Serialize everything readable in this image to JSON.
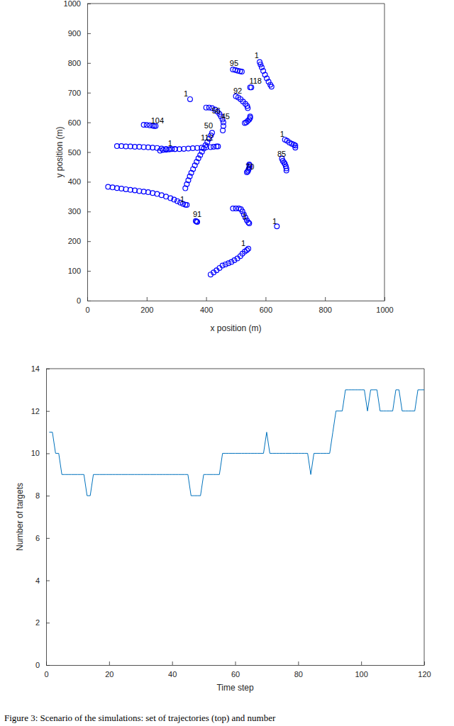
{
  "chart_data": [
    {
      "type": "scatter",
      "x_label": "x position (m)",
      "y_label": "y position (m)",
      "xlim": [
        0,
        1000
      ],
      "ylim": [
        0,
        1000
      ],
      "xticks": [
        0,
        200,
        400,
        600,
        800,
        1000
      ],
      "yticks": [
        0,
        100,
        200,
        300,
        400,
        500,
        600,
        700,
        800,
        900,
        1000
      ],
      "color": "#0000ff",
      "marker": "circle",
      "series": [
        {
          "x": [
            100,
            115,
            130,
            145,
            160,
            175,
            190,
            205,
            220,
            235,
            250,
            265,
            280,
            295,
            310,
            325,
            340,
            355,
            370,
            385,
            400,
            415,
            425,
            435,
            440
          ],
          "values": [
            520,
            520,
            519,
            519,
            518,
            518,
            517,
            516,
            515,
            514,
            512,
            511,
            510,
            510,
            510,
            511,
            512,
            513,
            514,
            515,
            516,
            517,
            518,
            519,
            519
          ]
        },
        {
          "x": [
            245,
            255,
            265,
            275,
            285,
            295
          ],
          "values": [
            505,
            507,
            508,
            509,
            510,
            510
          ]
        },
        {
          "x": [
            330,
            335,
            340,
            345,
            350,
            356,
            362,
            368,
            374,
            380,
            386,
            392,
            398,
            404,
            410,
            416,
            420
          ],
          "values": [
            378,
            392,
            405,
            418,
            430,
            443,
            455,
            467,
            479,
            490,
            501,
            512,
            523,
            534,
            545,
            556,
            565
          ]
        },
        {
          "x": [
            70,
            85,
            100,
            115,
            130,
            145,
            160,
            175,
            190,
            205,
            220,
            235,
            250,
            265,
            280,
            292,
            303,
            313,
            322,
            330,
            335
          ],
          "values": [
            383,
            381,
            379,
            377,
            375,
            373,
            371,
            369,
            367,
            365,
            362,
            359,
            355,
            350,
            345,
            340,
            335,
            330,
            326,
            323,
            322
          ]
        },
        {
          "x": [
            190,
            200,
            210,
            220,
            225,
            230
          ],
          "values": [
            592,
            591,
            590,
            589,
            588,
            588
          ]
        },
        {
          "x": [
            346
          ],
          "values": [
            678
          ]
        },
        {
          "x": [
            400,
            410,
            420,
            430,
            438,
            445,
            450,
            455,
            458,
            458,
            456
          ],
          "values": [
            650,
            650,
            648,
            643,
            636,
            628,
            620,
            610,
            600,
            588,
            573
          ]
        },
        {
          "x": [
            365,
            368,
            370
          ],
          "values": [
            268,
            266,
            265
          ]
        },
        {
          "x": [
            415,
            425,
            435,
            445,
            455,
            465,
            475,
            485,
            495,
            505,
            515,
            522,
            530,
            537,
            542
          ],
          "values": [
            88,
            95,
            102,
            110,
            118,
            122,
            126,
            130,
            136,
            142,
            150,
            158,
            165,
            170,
            175
          ]
        },
        {
          "x": [
            490,
            500,
            510,
            517,
            522,
            527,
            532,
            537,
            542,
            545
          ],
          "values": [
            310,
            310,
            310,
            308,
            300,
            290,
            280,
            270,
            263,
            260
          ]
        },
        {
          "x": [
            490,
            498,
            506,
            514,
            520
          ],
          "values": [
            778,
            776,
            774,
            772,
            771
          ]
        },
        {
          "x": [
            580,
            583,
            587,
            592,
            598,
            604,
            610,
            616,
            620
          ],
          "values": [
            803,
            795,
            785,
            773,
            760,
            748,
            737,
            727,
            720
          ]
        },
        {
          "x": [
            548,
            552
          ],
          "values": [
            718,
            718
          ]
        },
        {
          "x": [
            500,
            508,
            516,
            524,
            532,
            538,
            540
          ],
          "values": [
            688,
            684,
            678,
            670,
            662,
            655,
            648
          ]
        },
        {
          "x": [
            530,
            535,
            540,
            545,
            548,
            548
          ],
          "values": [
            598,
            600,
            605,
            610,
            615,
            620
          ]
        },
        {
          "x": [
            537,
            540,
            542,
            544,
            546,
            546,
            545
          ],
          "values": [
            432,
            435,
            440,
            445,
            450,
            455,
            458
          ]
        },
        {
          "x": [
            655,
            658,
            662,
            665,
            668,
            670,
            670
          ],
          "values": [
            478,
            470,
            465,
            460,
            452,
            445,
            438
          ]
        },
        {
          "x": [
            665,
            672,
            680,
            688,
            695,
            700,
            700
          ],
          "values": [
            542,
            538,
            532,
            528,
            525,
            522,
            515
          ]
        },
        {
          "x": [
            638
          ],
          "values": [
            250
          ]
        }
      ],
      "annotations": [
        {
          "text": "1",
          "x": 332,
          "y": 694
        },
        {
          "text": "95",
          "x": 494,
          "y": 797
        },
        {
          "text": "1",
          "x": 570,
          "y": 823
        },
        {
          "text": "118",
          "x": 566,
          "y": 737
        },
        {
          "text": "92",
          "x": 506,
          "y": 704
        },
        {
          "text": "56",
          "x": 434,
          "y": 637
        },
        {
          "text": "45",
          "x": 465,
          "y": 618
        },
        {
          "text": "50",
          "x": 408,
          "y": 587
        },
        {
          "text": "112",
          "x": 403,
          "y": 547
        },
        {
          "text": "104",
          "x": 236,
          "y": 604
        },
        {
          "text": "1",
          "x": 279,
          "y": 527
        },
        {
          "text": "70",
          "x": 547,
          "y": 449
        },
        {
          "text": "1",
          "x": 656,
          "y": 558
        },
        {
          "text": "85",
          "x": 654,
          "y": 492
        },
        {
          "text": "1",
          "x": 320,
          "y": 339
        },
        {
          "text": "91",
          "x": 370,
          "y": 289
        },
        {
          "text": "1",
          "x": 530,
          "y": 282
        },
        {
          "text": "1",
          "x": 630,
          "y": 265
        },
        {
          "text": "1",
          "x": 525,
          "y": 191
        }
      ]
    },
    {
      "type": "line",
      "x_label": "Time step",
      "y_label": "Number of targets",
      "xlim": [
        0,
        120
      ],
      "ylim": [
        0,
        14
      ],
      "xticks": [
        0,
        20,
        40,
        60,
        80,
        100,
        120
      ],
      "yticks": [
        0,
        2,
        4,
        6,
        8,
        10,
        12,
        14
      ],
      "color": "#0072bd",
      "x": [
        1,
        2,
        3,
        4,
        5,
        6,
        7,
        8,
        9,
        10,
        11,
        12,
        13,
        14,
        15,
        16,
        17,
        18,
        19,
        20,
        21,
        22,
        23,
        24,
        25,
        26,
        27,
        28,
        29,
        30,
        31,
        32,
        33,
        34,
        35,
        36,
        37,
        38,
        39,
        40,
        41,
        42,
        43,
        44,
        45,
        46,
        47,
        48,
        49,
        50,
        51,
        52,
        53,
        54,
        55,
        56,
        57,
        58,
        59,
        60,
        61,
        62,
        63,
        64,
        65,
        66,
        67,
        68,
        69,
        70,
        71,
        72,
        73,
        74,
        75,
        76,
        77,
        78,
        79,
        80,
        81,
        82,
        83,
        84,
        85,
        86,
        87,
        88,
        89,
        90,
        91,
        92,
        93,
        94,
        95,
        96,
        97,
        98,
        99,
        100,
        101,
        102,
        103,
        104,
        105,
        106,
        107,
        108,
        109,
        110,
        111,
        112,
        113,
        114,
        115,
        116,
        117,
        118,
        119,
        120
      ],
      "values": [
        11,
        11,
        10,
        10,
        9,
        9,
        9,
        9,
        9,
        9,
        9,
        9,
        8,
        8,
        9,
        9,
        9,
        9,
        9,
        9,
        9,
        9,
        9,
        9,
        9,
        9,
        9,
        9,
        9,
        9,
        9,
        9,
        9,
        9,
        9,
        9,
        9,
        9,
        9,
        9,
        9,
        9,
        9,
        9,
        9,
        8,
        8,
        8,
        8,
        9,
        9,
        9,
        9,
        9,
        9,
        10,
        10,
        10,
        10,
        10,
        10,
        10,
        10,
        10,
        10,
        10,
        10,
        10,
        10,
        11,
        10,
        10,
        10,
        10,
        10,
        10,
        10,
        10,
        10,
        10,
        10,
        10,
        10,
        9,
        10,
        10,
        10,
        10,
        10,
        10,
        11,
        12,
        12,
        12,
        13,
        13,
        13,
        13,
        13,
        13,
        13,
        12,
        13,
        13,
        13,
        12,
        12,
        12,
        12,
        12,
        13,
        13,
        12,
        12,
        12,
        12,
        12,
        13,
        13,
        13
      ]
    }
  ],
  "caption": "Figure 3: Scenario of the simulations: set of trajectories (top) and number"
}
